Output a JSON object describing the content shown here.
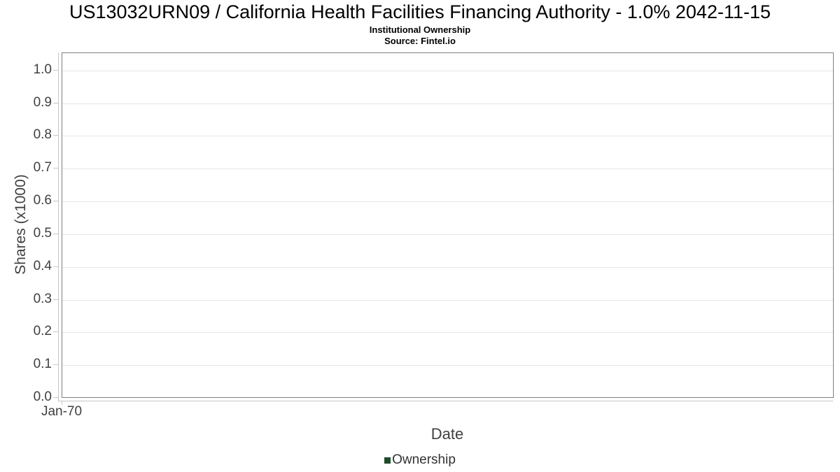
{
  "header": {
    "title": "US13032URN09 / California Health Facilities Financing Authority - 1.0% 2042-11-15",
    "subtitle": "Institutional Ownership",
    "source": "Source: Fintel.io"
  },
  "chart_data": {
    "type": "line",
    "title": "Institutional Ownership",
    "xlabel": "Date",
    "ylabel": "Shares (x1000)",
    "x_tick_labels": [
      "Jan-70"
    ],
    "x_tick_positions": [
      0
    ],
    "y_tick_values": [
      0.0,
      0.1,
      0.2,
      0.3,
      0.4,
      0.5,
      0.6,
      0.7,
      0.8,
      0.9,
      1.0
    ],
    "y_tick_labels": [
      "0.0",
      "0.1",
      "0.2",
      "0.3",
      "0.4",
      "0.5",
      "0.6",
      "0.7",
      "0.8",
      "0.9",
      "1.0"
    ],
    "ylim": [
      0,
      1.053
    ],
    "grid": "horizontal",
    "legend_position": "bottom",
    "legend": {
      "entries": [
        {
          "label": "Ownership",
          "color": "#1e4d2b"
        }
      ]
    },
    "series": [
      {
        "name": "Ownership",
        "color": "#1e4d2b",
        "x": [],
        "values": []
      }
    ]
  },
  "colors": {
    "plot_border": "#7f7f7f",
    "axis_line": "#c6c6c6",
    "gridline": "#e6e6e6",
    "tick_text": "#404040",
    "title_text": "#000000",
    "legend_marker": "#1e4d2b"
  }
}
